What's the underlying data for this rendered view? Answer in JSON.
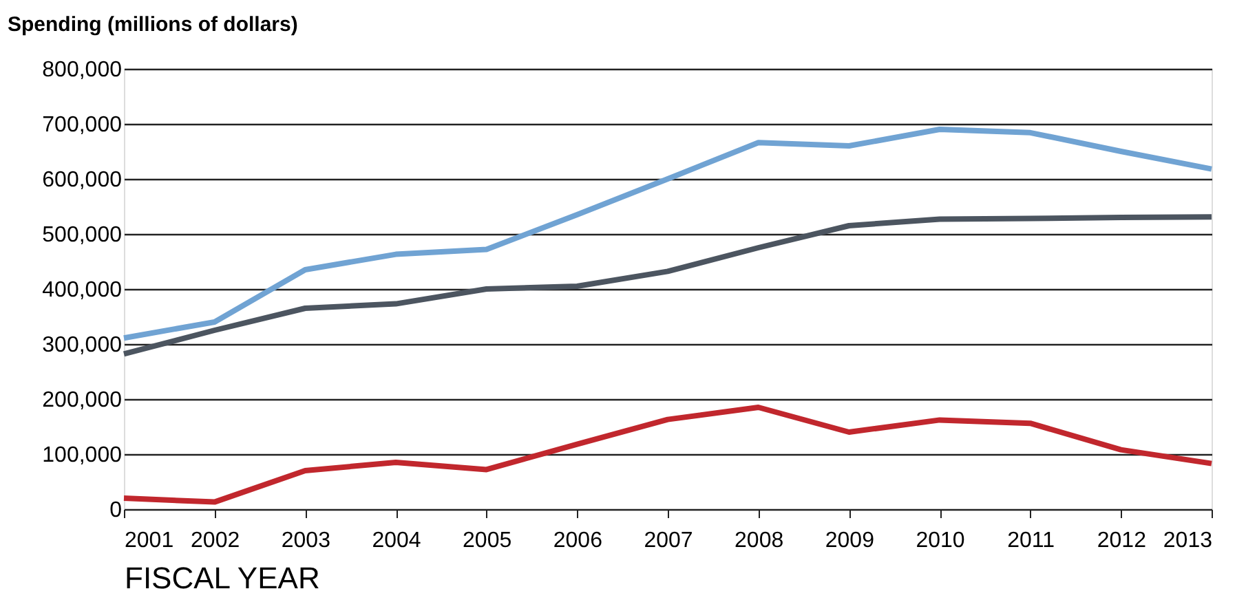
{
  "chart_data": {
    "type": "line",
    "ylabel": "Spending (millions of dollars)",
    "xlabel": "FISCAL YEAR",
    "categories": [
      "2001",
      "2002",
      "2003",
      "2004",
      "2005",
      "2006",
      "2007",
      "2008",
      "2009",
      "2010",
      "2011",
      "2012",
      "2013"
    ],
    "series": [
      {
        "color": "#70a3d3",
        "values": [
          311000,
          340000,
          435000,
          463000,
          472000,
          535000,
          600000,
          666000,
          660000,
          690000,
          684000,
          650000,
          618000
        ]
      },
      {
        "color": "#4c5560",
        "values": [
          282000,
          325000,
          365000,
          373000,
          400000,
          405000,
          432000,
          475000,
          515000,
          527000,
          528000,
          530000,
          531000
        ]
      },
      {
        "color": "#c1272d",
        "values": [
          20000,
          13000,
          70000,
          85000,
          72000,
          118000,
          163000,
          185000,
          140000,
          162000,
          156000,
          108000,
          83000
        ]
      }
    ],
    "ylim": [
      0,
      800000
    ],
    "yticks": [
      0,
      {
        "value": 100000,
        "label": "100,000"
      },
      {
        "value": 200000,
        "label": "200,000"
      },
      {
        "value": 300000,
        "label": "300,000"
      },
      {
        "value": 400000,
        "label": "400,000"
      },
      {
        "value": 500000,
        "label": "500,000"
      },
      {
        "value": 600000,
        "label": "600,000"
      },
      {
        "value": 700000,
        "label": "700,000"
      },
      {
        "value": 800000,
        "label": "800,000"
      }
    ],
    "grid": "y",
    "legend": false,
    "marker": "none",
    "line_style": "solid"
  }
}
